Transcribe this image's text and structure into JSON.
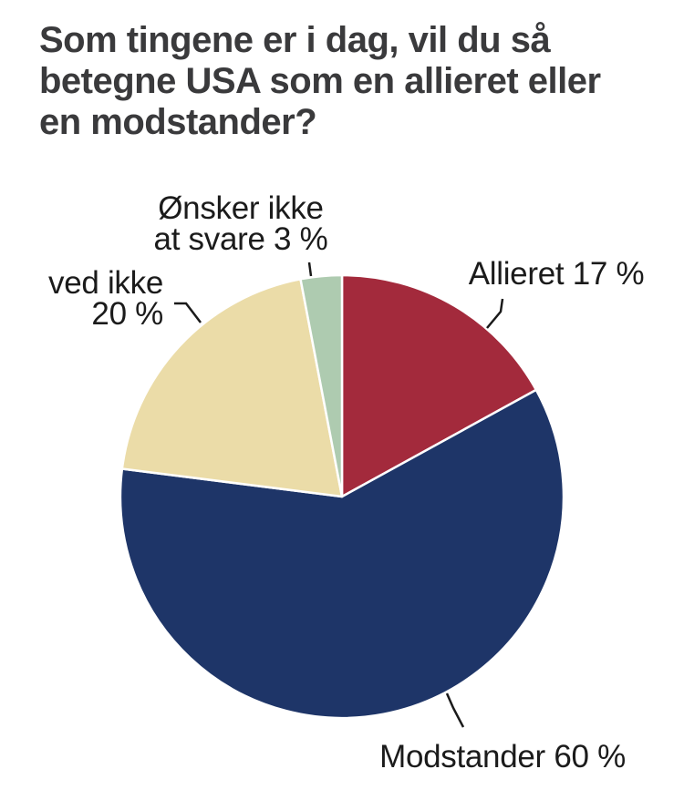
{
  "title": "Som tingene er i dag, vil du så\nbetegne USA som en allieret eller\nen modstander?",
  "chart_data": {
    "type": "pie",
    "title": "Som tingene er i dag, vil du så betegne USA som en allieret eller en modstander?",
    "unit": "%",
    "start_angle_deg": 0,
    "direction": "clockwise",
    "legend_position": "none",
    "slices": [
      {
        "id": "allieret",
        "label": "Allieret",
        "value": 17,
        "color": "#A32A3C"
      },
      {
        "id": "modstander",
        "label": "Modstander",
        "value": 60,
        "color": "#1E3568"
      },
      {
        "id": "ved-ikke",
        "label": "ved ikke",
        "value": 20,
        "color": "#EBDCA8"
      },
      {
        "id": "onsker-ikke-at-svare",
        "label": "Ønsker ikke at svare",
        "value": 3,
        "color": "#AECBB0"
      }
    ]
  },
  "annotations": {
    "allieret": "Allieret 17 %",
    "modstander": "Modstander 60 %",
    "ved_ikke": "ved ikke\n20 %",
    "onsker_ikke": "Ønsker ikke\nat svare 3 %"
  },
  "colors": {
    "background": "#FFFFFF",
    "title_text": "#3A3A3C",
    "label_text": "#1B1B1B",
    "leader_line": "#1A1A1A",
    "slice_divider": "#FFFFFF"
  }
}
